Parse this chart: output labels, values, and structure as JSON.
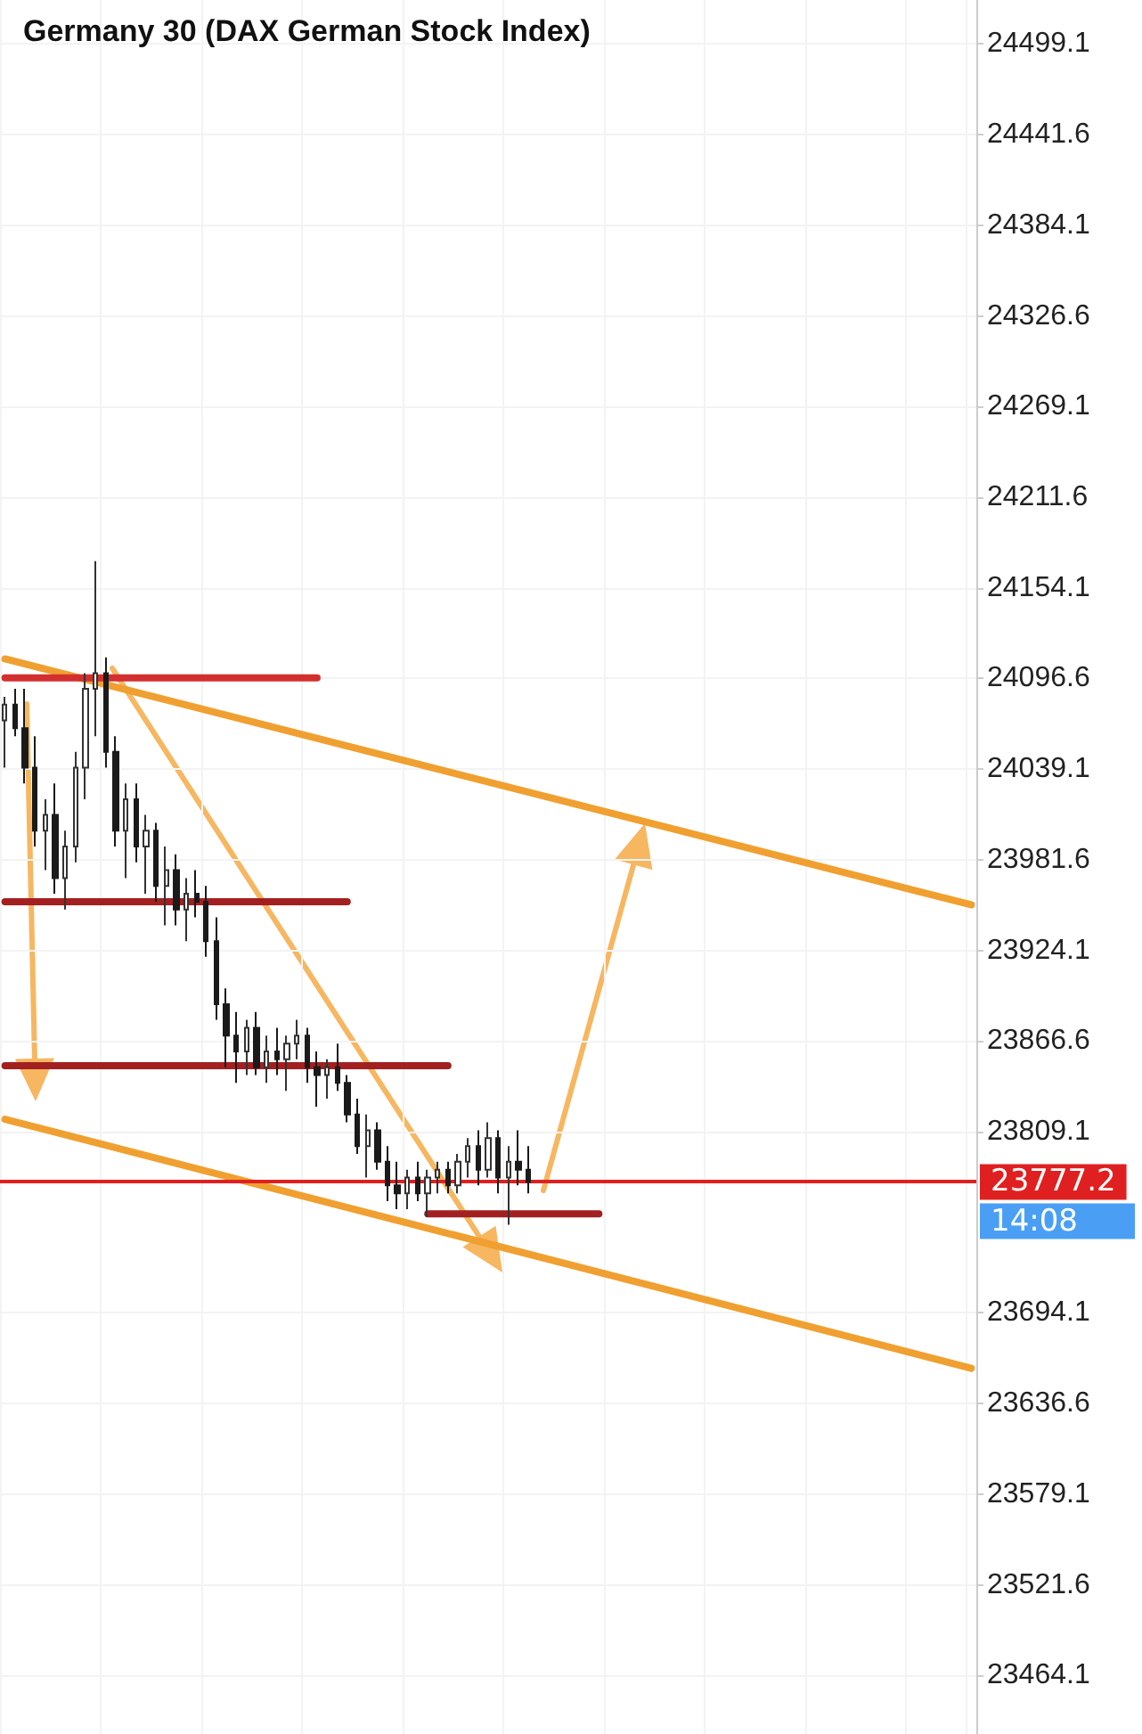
{
  "chart_data": {
    "type": "candlestick",
    "title": "Germany 30 (DAX German Stock Index)",
    "categories": [
      null,
      null,
      null,
      null,
      null,
      null,
      null,
      null,
      null,
      null,
      null,
      null,
      null,
      null,
      null,
      null,
      null,
      null,
      null,
      null,
      null,
      null,
      null,
      null,
      null,
      null,
      null,
      null,
      null,
      null,
      null,
      null,
      null,
      null,
      null,
      null,
      null,
      null,
      null,
      null,
      null,
      null,
      null,
      null,
      null,
      null,
      null,
      null,
      null,
      null,
      null,
      null,
      null,
      null,
      null,
      null,
      null,
      null,
      null,
      null,
      null,
      null,
      null,
      null,
      null,
      null,
      null,
      null,
      null,
      null,
      null,
      null,
      null,
      null,
      null,
      null,
      null,
      null,
      null,
      null,
      null,
      null,
      null,
      null,
      null,
      null,
      null,
      null,
      null,
      null,
      null,
      null,
      null,
      null,
      null,
      null,
      null
    ],
    "ohlc": [
      [
        24070,
        24085,
        24040,
        24080
      ],
      [
        24080,
        24090,
        24060,
        24065
      ],
      [
        24065,
        24090,
        24030,
        24040
      ],
      [
        24040,
        24060,
        23990,
        24000
      ],
      [
        24000,
        24020,
        23975,
        24010
      ],
      [
        24010,
        24030,
        23960,
        23970
      ],
      [
        23970,
        24000,
        23950,
        23990
      ],
      [
        23990,
        24050,
        23980,
        24040
      ],
      [
        24040,
        24100,
        24020,
        24090
      ],
      [
        24090,
        24171,
        24060,
        24100
      ],
      [
        24100,
        24110,
        24040,
        24050
      ],
      [
        24050,
        24060,
        23990,
        24000
      ],
      [
        24000,
        24030,
        23970,
        24020
      ],
      [
        24020,
        24030,
        23980,
        23990
      ],
      [
        23990,
        24010,
        23960,
        24000
      ],
      [
        24000,
        24005,
        23955,
        23965
      ],
      [
        23965,
        23990,
        23940,
        23975
      ],
      [
        23975,
        23985,
        23940,
        23950
      ],
      [
        23950,
        23970,
        23930,
        23960
      ],
      [
        23960,
        23975,
        23945,
        23955
      ],
      [
        23955,
        23965,
        23920,
        23930
      ],
      [
        23930,
        23945,
        23880,
        23890
      ],
      [
        23890,
        23900,
        23850,
        23870
      ],
      [
        23870,
        23885,
        23840,
        23860
      ],
      [
        23860,
        23880,
        23845,
        23875
      ],
      [
        23875,
        23885,
        23845,
        23850
      ],
      [
        23850,
        23870,
        23840,
        23860
      ],
      [
        23860,
        23875,
        23845,
        23855
      ],
      [
        23855,
        23870,
        23835,
        23865
      ],
      [
        23865,
        23880,
        23855,
        23870
      ],
      [
        23870,
        23875,
        23840,
        23850
      ],
      [
        23850,
        23860,
        23825,
        23845
      ],
      [
        23845,
        23855,
        23830,
        23850
      ],
      [
        23850,
        23865,
        23835,
        23840
      ],
      [
        23840,
        23845,
        23815,
        23820
      ],
      [
        23820,
        23830,
        23795,
        23800
      ],
      [
        23800,
        23820,
        23780,
        23810
      ],
      [
        23810,
        23815,
        23785,
        23790
      ],
      [
        23790,
        23800,
        23765,
        23775
      ],
      [
        23775,
        23790,
        23760,
        23770
      ],
      [
        23770,
        23785,
        23760,
        23780
      ],
      [
        23780,
        23790,
        23765,
        23770
      ],
      [
        23770,
        23785,
        23755,
        23780
      ],
      [
        23780,
        23790,
        23770,
        23785
      ],
      [
        23785,
        23790,
        23770,
        23775
      ],
      [
        23775,
        23795,
        23770,
        23790
      ],
      [
        23790,
        23805,
        23780,
        23800
      ],
      [
        23800,
        23810,
        23775,
        23785
      ],
      [
        23785,
        23815,
        23780,
        23805
      ],
      [
        23805,
        23810,
        23770,
        23780
      ],
      [
        23780,
        23800,
        23750,
        23790
      ],
      [
        23790,
        23810,
        23775,
        23785
      ],
      [
        23785,
        23800,
        23770,
        23777.2
      ],
      null,
      null,
      null,
      null,
      null,
      null,
      null,
      null,
      null,
      null,
      null,
      null,
      null,
      null,
      null,
      null,
      null,
      null,
      null,
      null,
      null,
      null,
      null,
      null,
      null,
      null,
      null,
      null,
      null,
      null,
      null,
      null,
      null,
      null,
      null,
      null,
      null,
      null,
      null,
      null,
      null,
      null,
      null,
      null
    ],
    "series": [
      {
        "type": "line",
        "color": "#f0a030",
        "values": [
          24109,
          null,
          null,
          null,
          null,
          null,
          null,
          null,
          null,
          null,
          null,
          null,
          null,
          null,
          null,
          null,
          null,
          null,
          null,
          null,
          null,
          null,
          null,
          null,
          null,
          null,
          null,
          null,
          null,
          null,
          null,
          null,
          null,
          null,
          null,
          null,
          null,
          null,
          null,
          null,
          null,
          null,
          null,
          null,
          null,
          null,
          null,
          null,
          null,
          null,
          null,
          null,
          null,
          null,
          null,
          null,
          null,
          null,
          null,
          null,
          null,
          null,
          null,
          null,
          null,
          null,
          null,
          null,
          null,
          null,
          null,
          null,
          null,
          null,
          null,
          null,
          null,
          null,
          null,
          null,
          null,
          null,
          null,
          null,
          null,
          null,
          null,
          null,
          null,
          null,
          null,
          null,
          null,
          null,
          null,
          null,
          23953
        ]
      },
      {
        "type": "line",
        "color": "#f0a030",
        "values": [
          23817,
          null,
          null,
          null,
          null,
          null,
          null,
          null,
          null,
          null,
          null,
          null,
          null,
          null,
          null,
          null,
          null,
          null,
          null,
          null,
          null,
          null,
          null,
          null,
          null,
          null,
          null,
          null,
          null,
          null,
          null,
          null,
          null,
          null,
          null,
          null,
          null,
          null,
          null,
          null,
          null,
          null,
          null,
          null,
          null,
          null,
          null,
          null,
          null,
          null,
          null,
          null,
          null,
          null,
          null,
          null,
          null,
          null,
          null,
          null,
          null,
          null,
          null,
          null,
          null,
          null,
          null,
          null,
          null,
          null,
          null,
          null,
          null,
          null,
          null,
          null,
          null,
          null,
          null,
          null,
          null,
          null,
          null,
          null,
          null,
          null,
          null,
          null,
          null,
          null,
          null,
          null,
          null,
          null,
          null,
          null,
          23659
        ]
      },
      {
        "type": "line",
        "color": "#d32f2f",
        "values": [
          24097,
          null,
          null,
          null,
          null,
          null,
          null,
          null,
          null,
          null,
          null,
          null,
          null,
          null,
          null,
          null,
          null,
          null,
          null,
          null,
          null,
          null,
          null,
          null,
          null,
          null,
          null,
          null,
          null,
          null,
          null,
          24097,
          null,
          null,
          null,
          null,
          null,
          null,
          null,
          null,
          null,
          null,
          null,
          null,
          null,
          null,
          null,
          null,
          null,
          null,
          null,
          null,
          null,
          null,
          null,
          null,
          null,
          null,
          null,
          null,
          null,
          null,
          null,
          null,
          null,
          null,
          null,
          null,
          null,
          null,
          null,
          null,
          null,
          null,
          null,
          null,
          null,
          null,
          null,
          null,
          null,
          null,
          null,
          null,
          null,
          null,
          null,
          null,
          null,
          null,
          null,
          null,
          null,
          null,
          null,
          null,
          null
        ]
      },
      {
        "type": "line",
        "color": "#a32020",
        "values": [
          23955,
          null,
          null,
          null,
          null,
          null,
          null,
          null,
          null,
          null,
          null,
          null,
          null,
          null,
          null,
          null,
          null,
          null,
          null,
          null,
          null,
          null,
          null,
          null,
          null,
          null,
          null,
          null,
          null,
          null,
          null,
          null,
          null,
          null,
          23955,
          null,
          null,
          null,
          null,
          null,
          null,
          null,
          null,
          null,
          null,
          null,
          null,
          null,
          null,
          null,
          null,
          null,
          null,
          null,
          null,
          null,
          null,
          null,
          null,
          null,
          null,
          null,
          null,
          null,
          null,
          null,
          null,
          null,
          null,
          null,
          null,
          null,
          null,
          null,
          null,
          null,
          null,
          null,
          null,
          null,
          null,
          null,
          null,
          null,
          null,
          null,
          null,
          null,
          null,
          null,
          null,
          null,
          null,
          null,
          null,
          null,
          null
        ]
      },
      {
        "type": "line",
        "color": "#a32020",
        "values": [
          23851,
          null,
          null,
          null,
          null,
          null,
          null,
          null,
          null,
          null,
          null,
          null,
          null,
          null,
          null,
          null,
          null,
          null,
          null,
          null,
          null,
          null,
          null,
          null,
          null,
          null,
          null,
          null,
          null,
          null,
          null,
          null,
          null,
          null,
          null,
          null,
          null,
          null,
          null,
          null,
          null,
          null,
          null,
          null,
          23851,
          null,
          null,
          null,
          null,
          null,
          null,
          null,
          null,
          null,
          null,
          null,
          null,
          null,
          null,
          null,
          null,
          null,
          null,
          null,
          null,
          null,
          null,
          null,
          null,
          null,
          null,
          null,
          null,
          null,
          null,
          null,
          null,
          null,
          null,
          null,
          null,
          null,
          null,
          null,
          null,
          null,
          null,
          null,
          null,
          null,
          null,
          null,
          null,
          null,
          null,
          null,
          null
        ]
      },
      {
        "type": "line",
        "color": "#a32020",
        "values": [
          null,
          null,
          null,
          null,
          null,
          null,
          null,
          null,
          null,
          null,
          null,
          null,
          null,
          null,
          null,
          null,
          null,
          null,
          null,
          null,
          null,
          null,
          null,
          null,
          null,
          null,
          null,
          null,
          null,
          null,
          null,
          null,
          null,
          null,
          null,
          null,
          null,
          null,
          null,
          null,
          null,
          null,
          23757,
          null,
          null,
          null,
          null,
          null,
          null,
          null,
          null,
          null,
          null,
          null,
          null,
          null,
          null,
          null,
          null,
          23757,
          null,
          null,
          null,
          null,
          null,
          null,
          null,
          null,
          null,
          null,
          null,
          null,
          null,
          null,
          null,
          null,
          null,
          null,
          null,
          null,
          null,
          null,
          null,
          null,
          null,
          null,
          null,
          null,
          null,
          null,
          null,
          null,
          null,
          null,
          null,
          null,
          null
        ]
      }
    ],
    "ref_lines": [
      {
        "axis": "y",
        "value": 23777.2,
        "label": "23777.2",
        "color": "#e02020"
      }
    ],
    "annotations": [
      "14:08"
    ],
    "ylim": [
      23427,
      24527
    ],
    "yticks": [
      24499.1,
      24441.6,
      24384.1,
      24326.6,
      24269.1,
      24211.6,
      24154.1,
      24096.6,
      24039.1,
      23981.6,
      23924.1,
      23866.6,
      23809.1,
      23694.1,
      23636.6,
      23579.1,
      23521.6,
      23464.1
    ],
    "grid": true,
    "tick_labels": "y"
  }
}
